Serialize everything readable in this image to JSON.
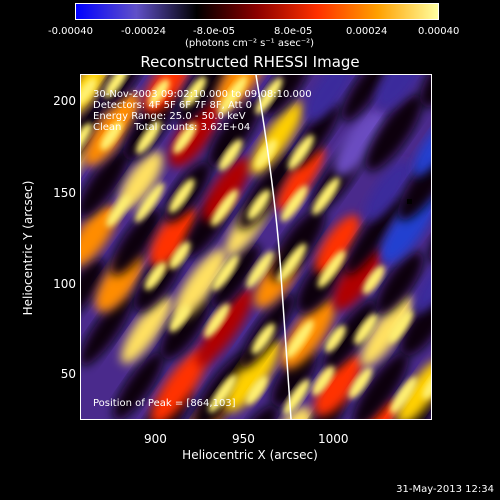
{
  "colorbar": {
    "ticks": [
      "-0.00040",
      "-0.00024",
      "-8.0e-05",
      "8.0e-05",
      "0.00024",
      "0.00040"
    ],
    "unit": "(photons cm⁻² s⁻¹ asec⁻²)",
    "colors": [
      "#0000ff",
      "#6050c8",
      "#000000",
      "#8b0000",
      "#ff3000",
      "#ffa000",
      "#ffffa0"
    ]
  },
  "title": "Reconstructed RHESSI Image",
  "annotations": {
    "line1": "30-Nov-2003 09:02:10.000 to 09:08:10.000",
    "line2": "Detectors: 4F 5F 6F 7F 8F, Att 0",
    "line3": "Energy Range: 25.0 - 50.0 keV",
    "line4": "Clean    Total counts: 3.62E+04",
    "peak": "Position of Peak = [864,103]"
  },
  "axes": {
    "xlabel": "Heliocentric X (arcsec)",
    "ylabel": "Heliocentric Y (arcsec)",
    "xticks": [
      "900",
      "950",
      "1000"
    ],
    "yticks": [
      "200",
      "150",
      "100",
      "50"
    ]
  },
  "timestamp": "31-May-2013 12:34"
}
